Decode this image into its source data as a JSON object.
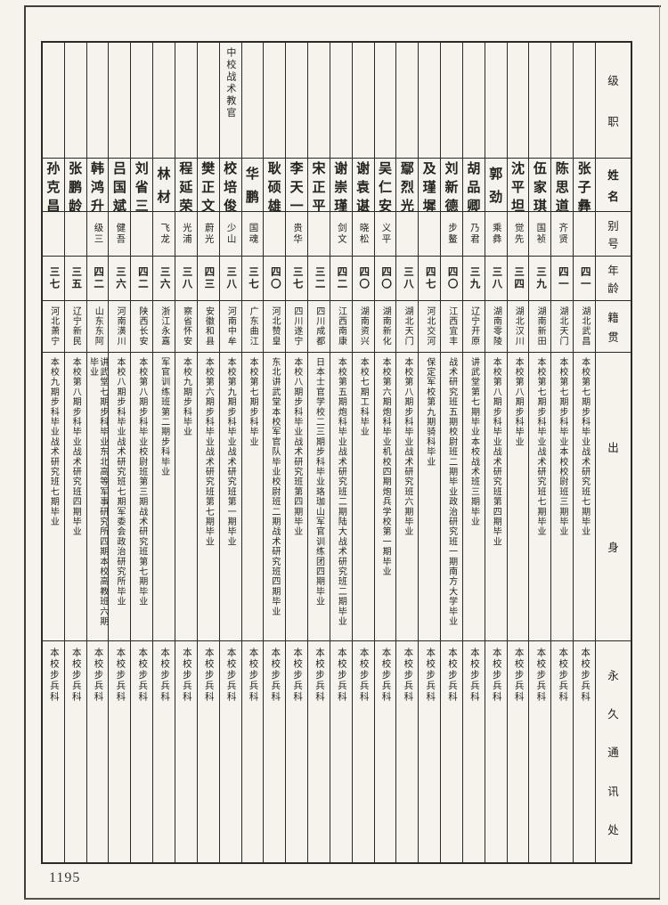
{
  "page": {
    "page_number": "1195",
    "colors": {
      "paper": "#f5f3ec",
      "ink": "#2a2a27"
    }
  },
  "table": {
    "headers": {
      "rank": "级职",
      "name": "姓名",
      "alias": "别号",
      "age": "年龄",
      "native_place": "籍贯",
      "origin": "出身",
      "address": "永久通讯处"
    },
    "people": [
      {
        "name": "张子彝",
        "rank": "",
        "alias": "",
        "age": "四一",
        "native_place": "湖北武昌",
        "origin": "本校第七期步科毕业战术研究班七期毕业",
        "address": "本校步兵科"
      },
      {
        "name": "陈思道",
        "rank": "",
        "alias": "齐贤",
        "age": "四一",
        "native_place": "湖北天门",
        "origin": "本校第七期步科毕业本校校尉班三期毕业",
        "address": "本校步兵科"
      },
      {
        "name": "伍家琪",
        "rank": "",
        "alias": "国祯",
        "age": "三九",
        "native_place": "湖南新田",
        "origin": "本校第七期步科毕业战术研究班七期毕业",
        "address": "本校步兵科"
      },
      {
        "name": "沈平坦",
        "rank": "",
        "alias": "觉先",
        "age": "三四",
        "native_place": "湖北汉川",
        "origin": "本校第八期步科毕业",
        "address": "本校步兵科"
      },
      {
        "name": "郭劲",
        "rank": "",
        "alias": "乘彝",
        "age": "三八",
        "native_place": "湖南零陵",
        "origin": "本校第八期步科毕业战术研究班第四期毕业",
        "address": "本校步兵科"
      },
      {
        "name": "胡品卿",
        "rank": "",
        "alias": "乃君",
        "age": "三九",
        "native_place": "辽宁开原",
        "origin": "讲武堂第七期毕业本校战术班三期毕业",
        "address": "本校步兵科"
      },
      {
        "name": "刘新德",
        "rank": "",
        "alias": "步鳌",
        "age": "四〇",
        "native_place": "江西宜丰",
        "origin": "战术研究班五期校尉班二期毕业政治研究班一期南方大学毕业",
        "address": "本校步兵科"
      },
      {
        "name": "及瑾墀",
        "rank": "",
        "alias": "",
        "age": "四七",
        "native_place": "河北交河",
        "origin": "保定军校第九期骑科毕业",
        "address": "本校步兵科"
      },
      {
        "name": "鄢烈光",
        "rank": "",
        "alias": "",
        "age": "三八",
        "native_place": "湖北天门",
        "origin": "本校第八期步科毕业战术研究班六期毕业",
        "address": "本校步兵科"
      },
      {
        "name": "吴仁安",
        "rank": "",
        "alias": "义平",
        "age": "四〇",
        "native_place": "湖南新化",
        "origin": "本校第六期炮科毕业机校四期炮兵学校第一期毕业",
        "address": "本校步兵科"
      },
      {
        "name": "谢袁谌",
        "rank": "",
        "alias": "晓松",
        "age": "四〇",
        "native_place": "湖南资兴",
        "origin": "本校七期工科毕业",
        "address": "本校步兵科"
      },
      {
        "name": "谢崇瑾",
        "rank": "",
        "alias": "剑文",
        "age": "四二",
        "native_place": "江西南康",
        "origin": "本校第五期炮科毕业战术研究班二期陆大战术研究班二期毕业",
        "address": "本校步兵科"
      },
      {
        "name": "宋正平",
        "rank": "",
        "alias": "",
        "age": "三二",
        "native_place": "四川成都",
        "origin": "日本士官学校二三期步科毕业珞珈山军官训练团四期毕业",
        "address": "本校步兵科"
      },
      {
        "name": "李天一",
        "rank": "",
        "alias": "贵华",
        "age": "三七",
        "native_place": "四川遂宁",
        "origin": "本校八期步科毕业战术研究班第四期毕业",
        "address": "本校步兵科"
      },
      {
        "name": "耿硕雄",
        "rank": "",
        "alias": "",
        "age": "四〇",
        "native_place": "河北赞皇",
        "origin": "东北讲武堂本校军官队毕业校尉班二期战术研究班四期毕业",
        "address": "本校步兵科"
      },
      {
        "name": "华鹏",
        "rank": "",
        "alias": "国魂",
        "age": "三七",
        "native_place": "广东曲江",
        "origin": "本校第七期步科毕业",
        "address": "本校步兵科"
      },
      {
        "name": "校培俊",
        "rank": "中校战术教官",
        "alias": "少山",
        "age": "三八",
        "native_place": "河南中牟",
        "origin": "本校第九期步科毕业战术研究班第一期毕业",
        "address": "本校步兵科"
      },
      {
        "name": "樊正文",
        "rank": "",
        "alias": "蔚光",
        "age": "四三",
        "native_place": "安徽和县",
        "origin": "本校第六期步科毕业战术研究班第七期毕业",
        "address": "本校步兵科"
      },
      {
        "name": "程延荣",
        "rank": "",
        "alias": "光浦",
        "age": "三八",
        "native_place": "察省怀安",
        "origin": "本校九期步科毕业",
        "address": "本校步兵科"
      },
      {
        "name": "林材",
        "rank": "",
        "alias": "飞龙",
        "age": "三六",
        "native_place": "浙江永嘉",
        "origin": "军官训练班第二期步科毕业",
        "address": "本校步兵科"
      },
      {
        "name": "刘省三",
        "rank": "",
        "alias": "",
        "age": "四二",
        "native_place": "陕西长安",
        "origin": "本校第八期步科毕业校尉班第三期战术研究班第七期毕业",
        "address": "本校步兵科"
      },
      {
        "name": "吕国斌",
        "rank": "",
        "alias": "健吾",
        "age": "三六",
        "native_place": "河南潢川",
        "origin": "本校八期步科毕业战术研究班七期军委会政治研究所毕业",
        "address": "本校步兵科"
      },
      {
        "name": "韩鸿升",
        "rank": "",
        "alias": "级三",
        "age": "四二",
        "native_place": "山东东阿",
        "origin": "讲武堂七期步科毕业东北高等军事研究所四期本校高教班六期毕业",
        "address": "本校步兵科"
      },
      {
        "name": "张鹏龄",
        "rank": "",
        "alias": "",
        "age": "三五",
        "native_place": "辽宁新民",
        "origin": "本校第八期步科毕业战术研究班四期毕业",
        "address": "本校步兵科"
      },
      {
        "name": "孙克昌",
        "rank": "",
        "alias": "",
        "age": "三七",
        "native_place": "河北萧宁",
        "origin": "本校九期步科毕业战术研究班七期毕业",
        "address": "本校步兵科"
      }
    ]
  }
}
